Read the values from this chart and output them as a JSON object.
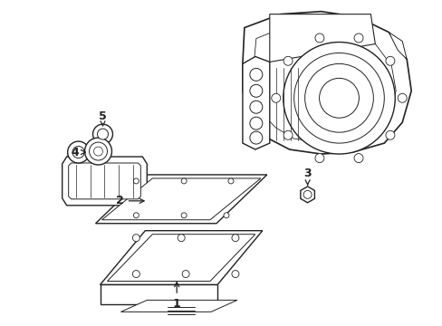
{
  "background_color": "#ffffff",
  "line_color": "#222222",
  "line_width": 1.0,
  "figsize": [
    4.89,
    3.6
  ],
  "dpi": 100
}
